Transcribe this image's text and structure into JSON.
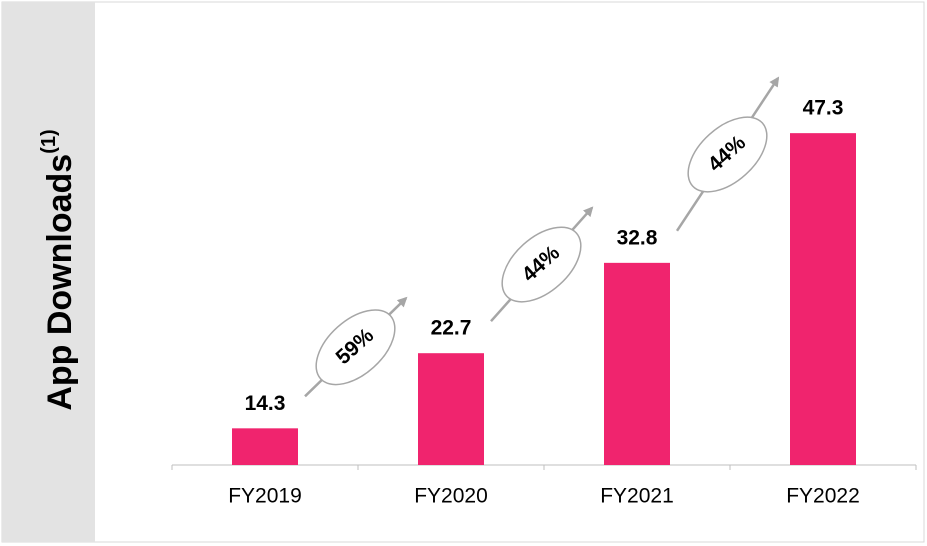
{
  "chart_data": {
    "type": "bar",
    "y_label": "App Downloads",
    "y_label_note": "(1)",
    "categories": [
      "FY2019",
      "FY2020",
      "FY2021",
      "FY2022"
    ],
    "values": [
      14.3,
      22.7,
      32.8,
      47.3
    ],
    "color": "#f0246e",
    "ylim": [
      10.2,
      50
    ],
    "annotations": [
      "59%",
      "44%",
      "44%"
    ]
  }
}
